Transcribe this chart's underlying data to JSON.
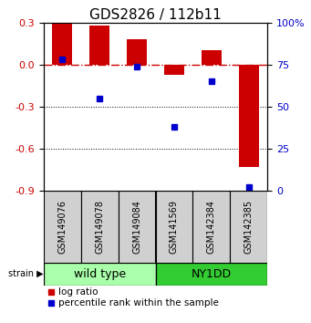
{
  "title": "GDS2826 / 112b11",
  "samples": [
    "GSM149076",
    "GSM149078",
    "GSM149084",
    "GSM141569",
    "GSM142384",
    "GSM142385"
  ],
  "log_ratios": [
    0.3,
    0.28,
    0.18,
    -0.07,
    0.1,
    -0.73
  ],
  "percentile_ranks": [
    78,
    55,
    74,
    38,
    65,
    2
  ],
  "groups": [
    {
      "label": "wild type",
      "count": 3,
      "color": "#aaffaa"
    },
    {
      "label": "NY1DD",
      "count": 3,
      "color": "#33cc33"
    }
  ],
  "bar_color": "#CC0000",
  "dot_color": "#0000CC",
  "ylim_left": [
    -0.9,
    0.3
  ],
  "ylim_right": [
    0,
    100
  ],
  "yticks_left": [
    0.3,
    0.0,
    -0.3,
    -0.6,
    -0.9
  ],
  "yticks_right": [
    100,
    75,
    50,
    25,
    0
  ],
  "ylabel_left_color": "#CC0000",
  "ylabel_right_color": "#0000CC",
  "hline_color": "#CC0000",
  "dotted_lines": [
    -0.3,
    -0.6
  ],
  "bar_width": 0.55,
  "title_fontsize": 11,
  "sample_label_fontsize": 7,
  "group_label_fontsize": 9,
  "legend_bar_label": "log ratio",
  "legend_dot_label": "percentile rank within the sample",
  "background_color": "#ffffff",
  "sample_box_color": "#d0d0d0",
  "group_border_color": "#000000"
}
